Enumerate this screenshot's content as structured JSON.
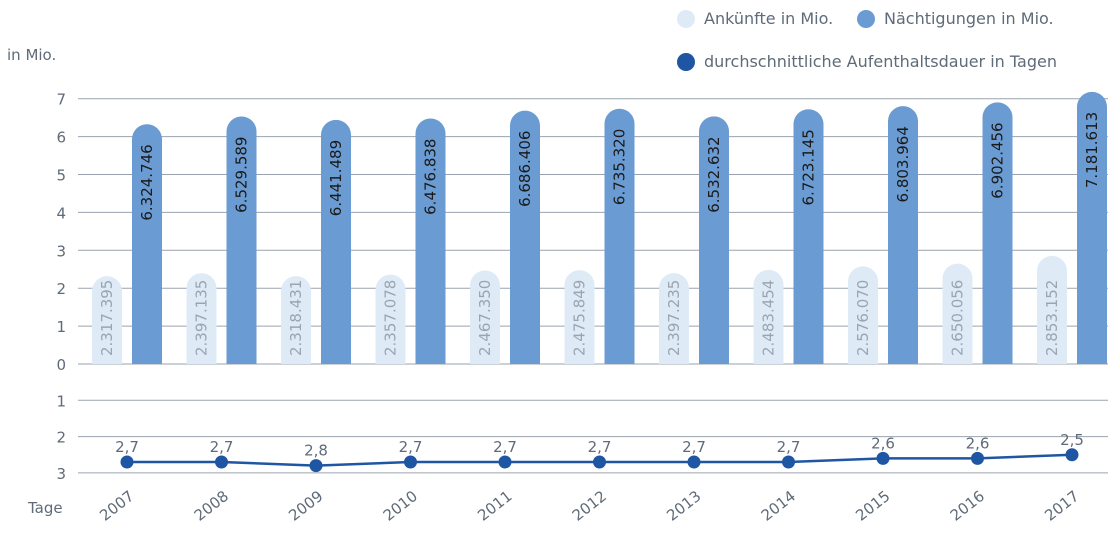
{
  "chart_data": {
    "type": "bar",
    "categories": [
      "2007",
      "2008",
      "2009",
      "2010",
      "2011",
      "2012",
      "2013",
      "2014",
      "2015",
      "2016",
      "2017"
    ],
    "series": [
      {
        "name": "Ankünfte in Mio.",
        "values": [
          2.317395,
          2.397135,
          2.318431,
          2.357078,
          2.46735,
          2.475849,
          2.397235,
          2.483454,
          2.57607,
          2.650056,
          2.853152
        ],
        "labels": [
          "2.317.395",
          "2.397.135",
          "2.318.431",
          "2.357.078",
          "2.467.350",
          "2.475.849",
          "2.397.235",
          "2.483.454",
          "2.576.070",
          "2.650.056",
          "2.853.152"
        ],
        "color": "#deebf7"
      },
      {
        "name": "Nächtigungen in Mio.",
        "values": [
          6.324746,
          6.529589,
          6.441489,
          6.476838,
          6.686406,
          6.73532,
          6.532632,
          6.723145,
          6.803964,
          6.902456,
          7.181613
        ],
        "labels": [
          "6.324.746",
          "6.529.589",
          "6.441.489",
          "6.476.838",
          "6.686.406",
          "6.735.320",
          "6.532.632",
          "6.723.145",
          "6.803.964",
          "6.902.456",
          "7.181.613"
        ],
        "color": "#6a9bd3"
      },
      {
        "name": "durchschnittliche Aufenthaltsdauer in Tagen",
        "type": "line",
        "values": [
          2.7,
          2.7,
          2.8,
          2.7,
          2.7,
          2.7,
          2.7,
          2.7,
          2.6,
          2.6,
          2.5
        ],
        "labels": [
          "2,7",
          "2,7",
          "2,8",
          "2,7",
          "2,7",
          "2,7",
          "2,7",
          "2,7",
          "2,6",
          "2,6",
          "2,5"
        ],
        "color": "#1f56a3"
      }
    ],
    "ylabel": "in Mio.",
    "ylim": [
      0,
      7
    ],
    "yticks": [
      "0",
      "1",
      "2",
      "3",
      "4",
      "5",
      "6",
      "7"
    ],
    "y2label": "Tage",
    "y2lim": [
      0,
      3
    ],
    "y2ticks": [
      "1",
      "2",
      "3"
    ],
    "grid": true,
    "legend": "top-right"
  }
}
